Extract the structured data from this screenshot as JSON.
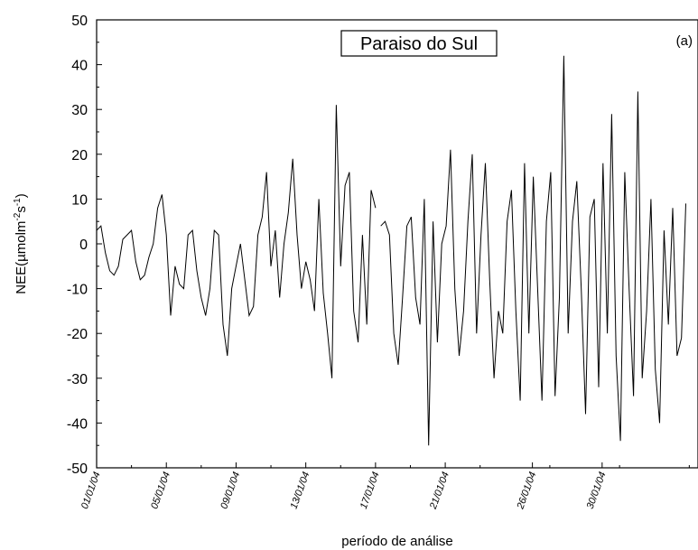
{
  "chart_data": {
    "type": "line",
    "title": "Paraiso do Sul",
    "annotation": "(a)",
    "xlabel": "período de análise",
    "ylabel_main": "NEE(µmolm",
    "ylabel_sup1": "-2",
    "ylabel_mid": "s",
    "ylabel_sup2": "-1",
    "ylabel_end": ")",
    "ylim": [
      -50,
      50
    ],
    "yticks": [
      -50,
      -40,
      -30,
      -20,
      -10,
      0,
      10,
      20,
      30,
      40,
      50
    ],
    "ytick_labels": [
      "-50",
      "-40",
      "-30",
      "-20",
      "-10",
      "0",
      "10",
      "20",
      "30",
      "40",
      "50"
    ],
    "xlim_days": [
      0,
      34.5
    ],
    "xticks_days": [
      0,
      4,
      8,
      12,
      16,
      20,
      25,
      29
    ],
    "xtick_labels": [
      "01/01/04",
      "05/01/04",
      "09/01/04",
      "13/01/04",
      "17/01/04",
      "21/01/04",
      "26/01/04",
      "30/01/04"
    ],
    "series": [
      {
        "color": "#000000",
        "segments": [
          {
            "x_start": 0.0,
            "x_step": 0.25,
            "values": [
              3,
              4,
              -2,
              -6,
              -7,
              -5,
              1,
              2,
              3,
              -4,
              -8,
              -7,
              -3,
              0,
              8,
              11,
              2,
              -16,
              -5,
              -9,
              -10,
              2,
              3,
              -6,
              -12,
              -16,
              -10,
              3,
              2,
              -18,
              -25,
              -10,
              -5,
              0,
              -8,
              -16,
              -14,
              2,
              6,
              16,
              -5,
              3,
              -12,
              0,
              7,
              19,
              2,
              -10,
              -4,
              -8,
              -15,
              10,
              -11,
              -20,
              -30,
              31,
              -5,
              13,
              16,
              -15,
              -22,
              2,
              -18,
              12,
              8
            ]
          },
          {
            "x_start": 16.3,
            "x_step": 0.25,
            "values": [
              4,
              5,
              2,
              -20,
              -27,
              -12,
              4,
              6,
              -12,
              -18,
              10,
              -45,
              5,
              -22,
              0,
              4,
              21,
              -10,
              -25,
              -15,
              5,
              20,
              -20,
              2,
              18,
              -8,
              -30,
              -15,
              -20,
              5,
              12,
              -15,
              -35,
              18,
              -20,
              15,
              -10,
              -35,
              5,
              16,
              -34,
              -12,
              42,
              -20,
              5,
              14,
              -10,
              -38,
              6,
              10,
              -32,
              18,
              -20,
              29,
              -25,
              -44,
              16,
              -10,
              -34,
              34,
              -30,
              -15,
              10,
              -28,
              -40,
              3,
              -18,
              8,
              -25,
              -21,
              9
            ]
          }
        ]
      }
    ]
  }
}
